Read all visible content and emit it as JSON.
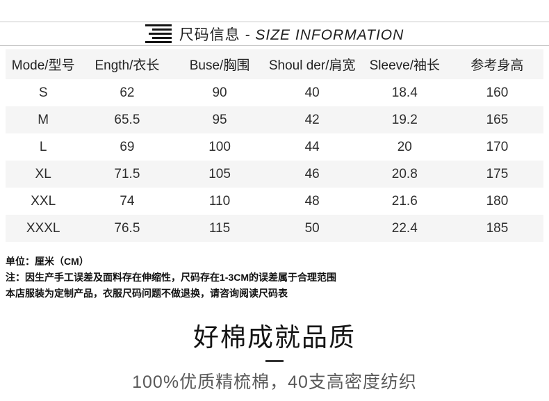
{
  "header": {
    "title_cn": "尺码信息",
    "title_en": "- SIZE INFORMATION"
  },
  "size_table": {
    "columns": [
      "Mode/型号",
      "Ength/衣长",
      "Buse/胸围",
      "Shoul der/肩宽",
      "Sleeve/袖长",
      "参考身高"
    ],
    "rows": [
      [
        "S",
        "62",
        "90",
        "40",
        "18.4",
        "160"
      ],
      [
        "M",
        "65.5",
        "95",
        "42",
        "19.2",
        "165"
      ],
      [
        "L",
        "69",
        "100",
        "44",
        "20",
        "170"
      ],
      [
        "XL",
        "71.5",
        "105",
        "46",
        "20.8",
        "175"
      ],
      [
        "XXL",
        "74",
        "110",
        "48",
        "21.6",
        "180"
      ],
      [
        "XXXL",
        "76.5",
        "115",
        "50",
        "22.4",
        "185"
      ]
    ]
  },
  "notes": {
    "line1": "单位：厘米（CM）",
    "line2": "注：因生产手工误差及面料存在伸缩性，尺码存在1-3CM的误差属于合理范围",
    "line3": "本店服装为定制产品，衣服尺码问题不做退换，请咨询阅读尺码表"
  },
  "banner": {
    "title": "好棉成就品质",
    "subtitle": "100%优质精梳棉，40支高密度纺织"
  },
  "colors": {
    "stripe": "#f5f5f5",
    "divider_line": "#c9c9c9",
    "text_dark": "#1f1f1f",
    "text_gray": "#595959"
  }
}
